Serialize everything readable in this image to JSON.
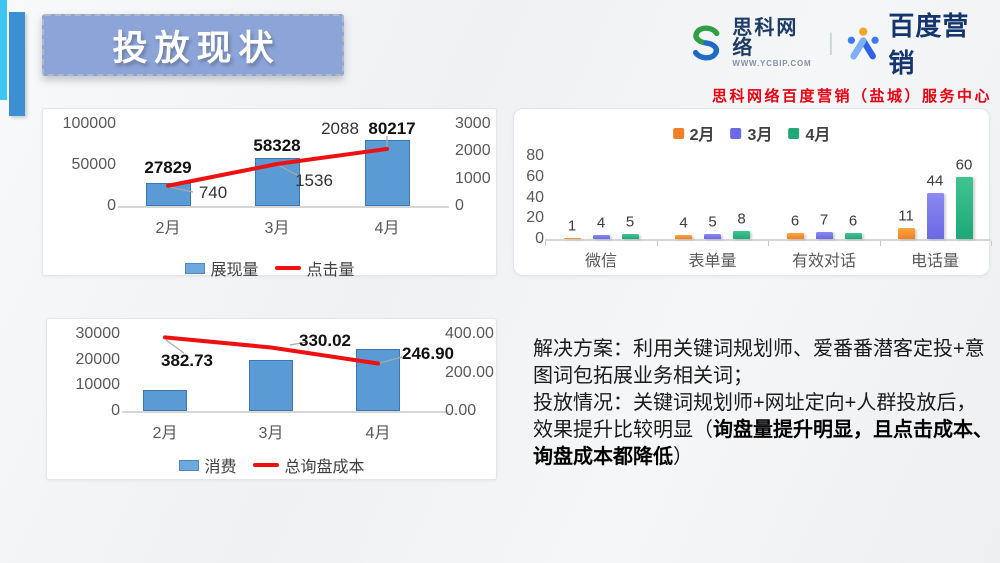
{
  "header": {
    "title": "投放现状",
    "logo_company": "思科网络",
    "logo_site": "WWW.YCBIP.COM",
    "logo_divider": "|",
    "logo_partner": "百度营销",
    "subtitle": "思科网络百度营销（盐城）服务中心"
  },
  "solution": {
    "lines": [
      [
        {
          "text": "解决方案：利用关键词规划师、爱番番潜客定投+意"
        }
      ],
      [
        {
          "text": "图词包拓展业务相关词；"
        }
      ],
      [
        {
          "text": "投放情况：关键词规划师+网址定向+人群投放后，"
        }
      ],
      [
        {
          "text": "效果提升比较明显（"
        },
        {
          "text": "询盘量提升明显，且点击成本、",
          "bold": true
        }
      ],
      [
        {
          "text": "询盘成本都降低",
          "bold": true
        },
        {
          "text": "）"
        }
      ]
    ]
  },
  "theme": {
    "title_bg": "#8CA4D8",
    "accent_cyan": "#3EC6F2",
    "accent_blue": "#3E8ED4",
    "bar_blue": "#5B9BD5",
    "line_red": "#EE1111",
    "subtitle_red": "#E60012"
  },
  "chart_data": [
    {
      "id": "impressions-clicks",
      "type": "bar",
      "subtype": "combo-bar-line",
      "categories": [
        "2月",
        "3月",
        "4月"
      ],
      "series": [
        {
          "name": "展现量",
          "kind": "bar",
          "values": [
            27829,
            58328,
            80217
          ],
          "color": "#5B9BD5",
          "axis": "left"
        },
        {
          "name": "点击量",
          "kind": "line",
          "values": [
            740,
            1536,
            2088
          ],
          "color": "#EE1111",
          "axis": "right"
        }
      ],
      "left_axis": {
        "ticks": [
          0,
          50000,
          100000
        ],
        "max": 100000
      },
      "right_axis": {
        "ticks": [
          0,
          1000,
          2000,
          3000
        ],
        "max": 3000
      },
      "legend_position": "bottom",
      "grid": false
    },
    {
      "id": "monthly-leads",
      "type": "bar",
      "subtype": "grouped-bar",
      "categories": [
        "微信",
        "表单量",
        "有效对话",
        "电话量"
      ],
      "series": [
        {
          "name": "2月",
          "values": [
            1,
            4,
            6,
            11
          ],
          "color": "#F08024",
          "color2": "#FAA73F"
        },
        {
          "name": "3月",
          "values": [
            4,
            5,
            7,
            44
          ],
          "color": "#6C69E4",
          "color2": "#8B89F2"
        },
        {
          "name": "4月",
          "values": [
            5,
            8,
            6,
            60
          ],
          "color": "#1FA878",
          "color2": "#3FC491"
        }
      ],
      "left_axis": {
        "ticks": [
          0,
          20,
          40,
          60,
          80
        ],
        "max": 80
      },
      "legend_position": "top",
      "grid": false
    },
    {
      "id": "cost-inquiry",
      "type": "bar",
      "subtype": "combo-bar-line",
      "categories": [
        "2月",
        "3月",
        "4月"
      ],
      "series": [
        {
          "name": "消费",
          "kind": "bar",
          "values": [
            8200,
            20000,
            24200
          ],
          "color": "#5B9BD5",
          "axis": "left",
          "labels_hidden": true
        },
        {
          "name": "总询盘成本",
          "kind": "line",
          "values": [
            382.73,
            330.02,
            246.9
          ],
          "color": "#EE1111",
          "axis": "right",
          "label_format": "2dp"
        }
      ],
      "left_axis": {
        "ticks": [
          0,
          10000,
          20000,
          30000
        ],
        "max": 30000
      },
      "right_axis": {
        "ticks": [
          0,
          200,
          400
        ],
        "max": 400,
        "format": "2dp"
      },
      "legend_position": "bottom",
      "grid": false
    }
  ]
}
